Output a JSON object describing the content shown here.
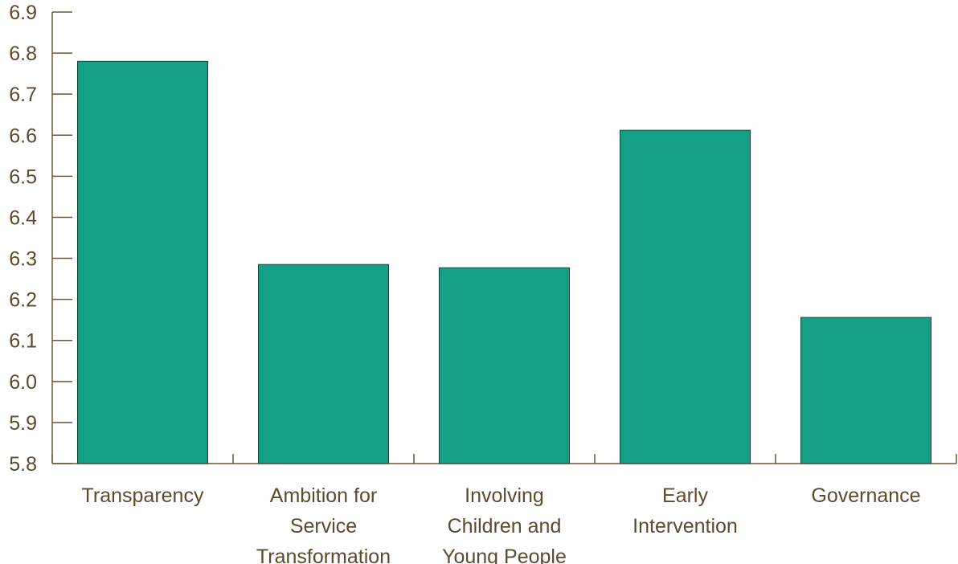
{
  "chart_data": {
    "type": "bar",
    "title": "",
    "xlabel": "",
    "ylabel": "",
    "categories": [
      [
        "Transparency"
      ],
      [
        "Ambition for",
        "Service",
        "Transformation"
      ],
      [
        "Involving",
        "Children and",
        "Young People"
      ],
      [
        "Early",
        "Intervention"
      ],
      [
        "Governance"
      ]
    ],
    "values": [
      6.78,
      6.285,
      6.277,
      6.612,
      6.156
    ],
    "ylim": [
      5.8,
      6.9
    ],
    "yticks": [
      "5.8",
      "5.9",
      "6.0",
      "6.1",
      "6.2",
      "6.3",
      "6.4",
      "6.5",
      "6.6",
      "6.7",
      "6.8",
      "6.9"
    ],
    "grid": false,
    "legend": "none"
  },
  "colors": {
    "bar_fill": "#169f87",
    "bar_stroke": "#2f3a2e",
    "axis": "#6b5634",
    "text": "#5d4a2a"
  }
}
